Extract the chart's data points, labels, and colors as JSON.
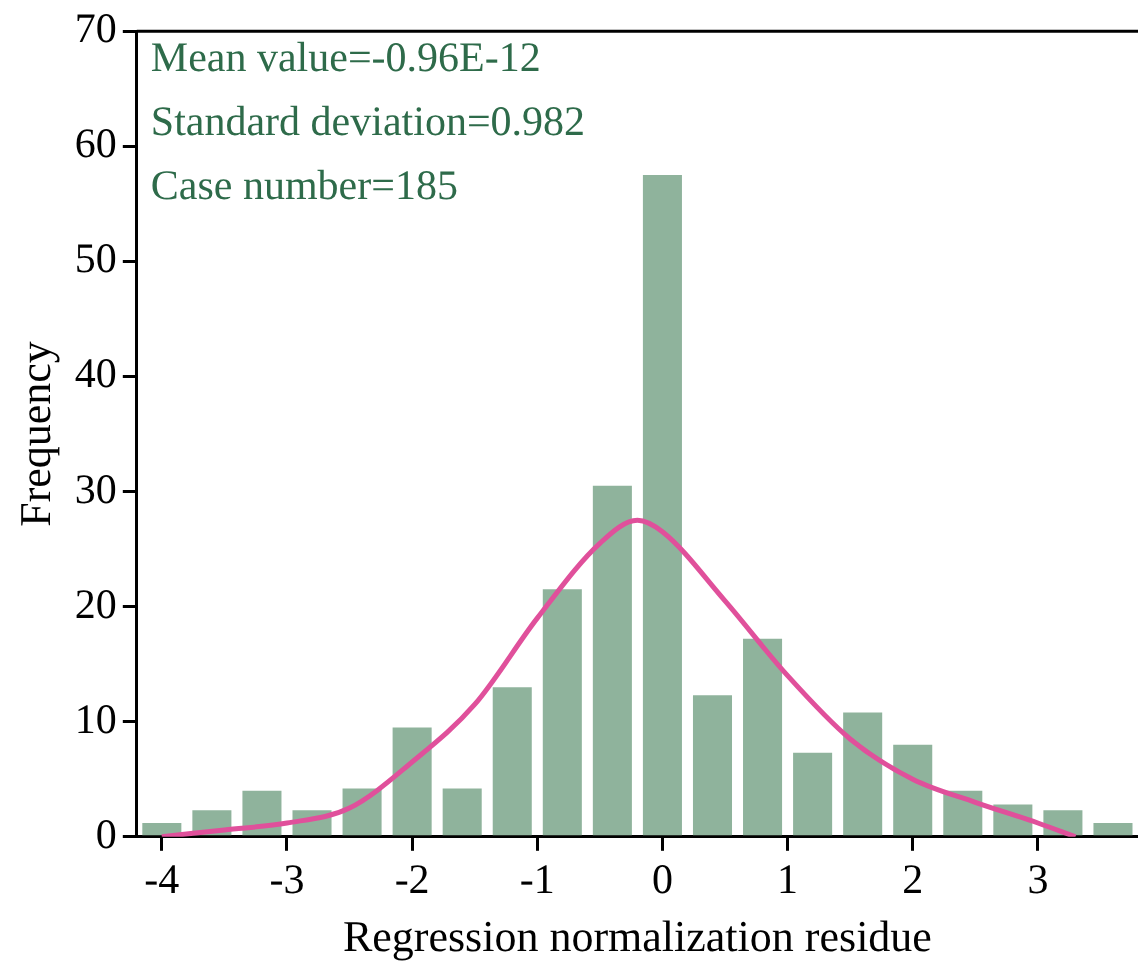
{
  "chart_data": {
    "type": "histogram",
    "xlabel": "Regression normalization residue",
    "ylabel": "Frequency",
    "bins": [
      -4.2,
      -3.8,
      -3.4,
      -3.0,
      -2.6,
      -2.2,
      -1.8,
      -1.4,
      -1.0,
      -0.6,
      -0.2,
      0.2,
      0.6,
      1.0,
      1.4,
      1.8,
      2.2,
      2.6,
      3.0,
      3.4,
      3.8
    ],
    "values": [
      1.2,
      2.3,
      4,
      2.3,
      4.2,
      9.5,
      4.2,
      13,
      21.5,
      30.5,
      57.5,
      12.3,
      17.2,
      7.3,
      10.8,
      8,
      4,
      2.8,
      2.3,
      1.2
    ],
    "color": "#8fb39c",
    "series": [
      {
        "type": "line",
        "color": "#e0509b",
        "x": [
          -4,
          -3.5,
          -3,
          -2.5,
          -2,
          -1.5,
          -1,
          -0.5,
          -0.2,
          0,
          0.5,
          1,
          1.5,
          2,
          2.5,
          3,
          3.3
        ],
        "values": [
          0,
          0.6,
          1.2,
          2.5,
          6.5,
          11.5,
          19,
          25.5,
          27.5,
          26.5,
          20.5,
          14,
          8.5,
          5,
          3,
          1.2,
          0
        ]
      }
    ],
    "xlim": [
      -4.2,
      3.8
    ],
    "xticks": [
      -4,
      -3,
      -2,
      -1,
      0,
      1,
      2,
      3
    ],
    "ylim": [
      0,
      70
    ],
    "yticks": [
      0,
      10,
      20,
      30,
      40,
      50,
      60,
      70
    ],
    "grid": false,
    "legend": false,
    "annotations": [
      "Mean value=-0.96E-12",
      "Standard deviation=0.982",
      "Case number=185"
    ]
  }
}
